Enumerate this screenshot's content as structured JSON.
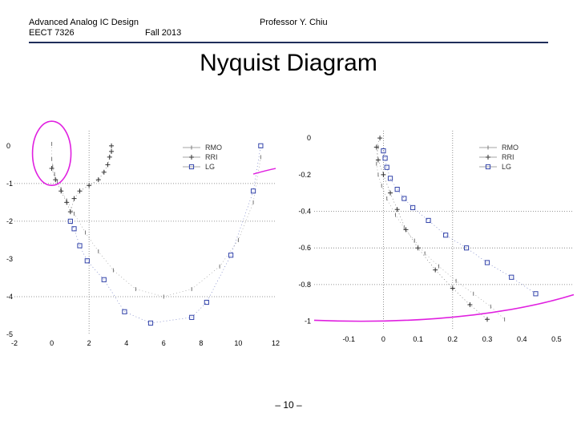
{
  "header": {
    "course": "Advanced Analog IC Design",
    "code": "EECT 7326",
    "term": "Fall 2013",
    "professor": "Professor Y. Chiu"
  },
  "slide_title": "Nyquist Diagram",
  "page_number": "– 10 –",
  "colors": {
    "rule": "#1f2d5a",
    "magenta": "#e020e0",
    "lg": "#3344aa",
    "rri": "#333333",
    "rmo": "#777777",
    "grid": "#777777"
  },
  "chart_data": [
    {
      "type": "scatter",
      "title": "",
      "xlabel": "",
      "ylabel": "",
      "x_ticks": [
        "-2",
        "0",
        "2",
        "4",
        "6",
        "8",
        "10",
        "12"
      ],
      "y_ticks": [
        "0",
        "-1",
        "-2",
        "-3",
        "-4",
        "-5"
      ],
      "xlim": [
        -2,
        12
      ],
      "ylim": [
        -5,
        0.4
      ],
      "grid": "dotted lines at x=2 and y=-1, -2, -4",
      "legend_position": "top-right",
      "series": [
        {
          "name": "RMO",
          "marker": "dot",
          "x": [
            0.0,
            0.0,
            0.05,
            0.15,
            0.3,
            0.5,
            0.8,
            1.2,
            1.8,
            2.5,
            3.3,
            4.5,
            6.0,
            7.5,
            9.0,
            10.0,
            10.8,
            11.2
          ],
          "y": [
            0.05,
            -0.35,
            -0.55,
            -0.75,
            -0.95,
            -1.15,
            -1.45,
            -1.8,
            -2.3,
            -2.8,
            -3.3,
            -3.8,
            -4.0,
            -3.8,
            -3.2,
            -2.5,
            -1.5,
            -0.3
          ]
        },
        {
          "name": "RRI",
          "marker": "plus",
          "x": [
            0.0,
            0.2,
            0.5,
            0.8,
            1.0,
            1.2,
            1.5,
            2.0,
            2.5,
            2.8,
            3.0,
            3.1,
            3.2,
            3.2
          ],
          "y": [
            -0.6,
            -0.9,
            -1.2,
            -1.5,
            -1.75,
            -1.4,
            -1.2,
            -1.05,
            -0.9,
            -0.7,
            -0.5,
            -0.3,
            -0.15,
            0.0
          ]
        },
        {
          "name": "LG",
          "marker": "square",
          "x": [
            1.0,
            1.2,
            1.5,
            1.9,
            2.8,
            3.9,
            5.3,
            7.5,
            8.3,
            9.6,
            10.8,
            11.2
          ],
          "y": [
            -2.0,
            -2.2,
            -2.65,
            -3.05,
            -3.55,
            -4.4,
            -4.7,
            -4.55,
            -4.15,
            -2.9,
            -1.2,
            0.0
          ]
        }
      ],
      "annotation": "magenta ellipse around points near the origin"
    },
    {
      "type": "scatter",
      "title": "",
      "xlabel": "",
      "ylabel": "",
      "x_ticks": [
        "-0.1",
        "0",
        "0.1",
        "0.2",
        "0.3",
        "0.4",
        "0.5"
      ],
      "y_ticks": [
        "0",
        "-0.2",
        "-0.4",
        "-0.6",
        "-0.8",
        "-1"
      ],
      "xlim": [
        -0.2,
        0.55
      ],
      "ylim": [
        -1.05,
        0.04
      ],
      "grid": "dotted lines at x=0, 0.2 and y=-0.4, -0.6, -0.8",
      "legend_position": "top-right",
      "series": [
        {
          "name": "RMO",
          "marker": "dot",
          "x": [
            -0.015,
            -0.02,
            -0.015,
            -0.005,
            0.01,
            0.035,
            0.06,
            0.09,
            0.12,
            0.16,
            0.21,
            0.26,
            0.31,
            0.35
          ],
          "y": [
            -0.05,
            -0.14,
            -0.2,
            -0.26,
            -0.33,
            -0.42,
            -0.49,
            -0.56,
            -0.63,
            -0.7,
            -0.78,
            -0.85,
            -0.92,
            -0.99
          ]
        },
        {
          "name": "RRI",
          "marker": "plus",
          "x": [
            -0.01,
            -0.02,
            -0.015,
            0.0,
            0.02,
            0.04,
            0.065,
            0.1,
            0.15,
            0.2,
            0.25,
            0.3
          ],
          "y": [
            0.0,
            -0.05,
            -0.12,
            -0.2,
            -0.3,
            -0.39,
            -0.5,
            -0.6,
            -0.72,
            -0.82,
            -0.91,
            -0.99
          ]
        },
        {
          "name": "LG",
          "marker": "square",
          "x": [
            0.0,
            0.005,
            0.01,
            0.02,
            0.04,
            0.06,
            0.085,
            0.13,
            0.18,
            0.24,
            0.3,
            0.37,
            0.44
          ],
          "y": [
            -0.07,
            -0.11,
            -0.16,
            -0.22,
            -0.28,
            -0.33,
            -0.38,
            -0.45,
            -0.53,
            -0.6,
            -0.68,
            -0.76,
            -0.85
          ]
        }
      ],
      "annotation": "magenta curve near y=-1 (unit circle)"
    }
  ]
}
